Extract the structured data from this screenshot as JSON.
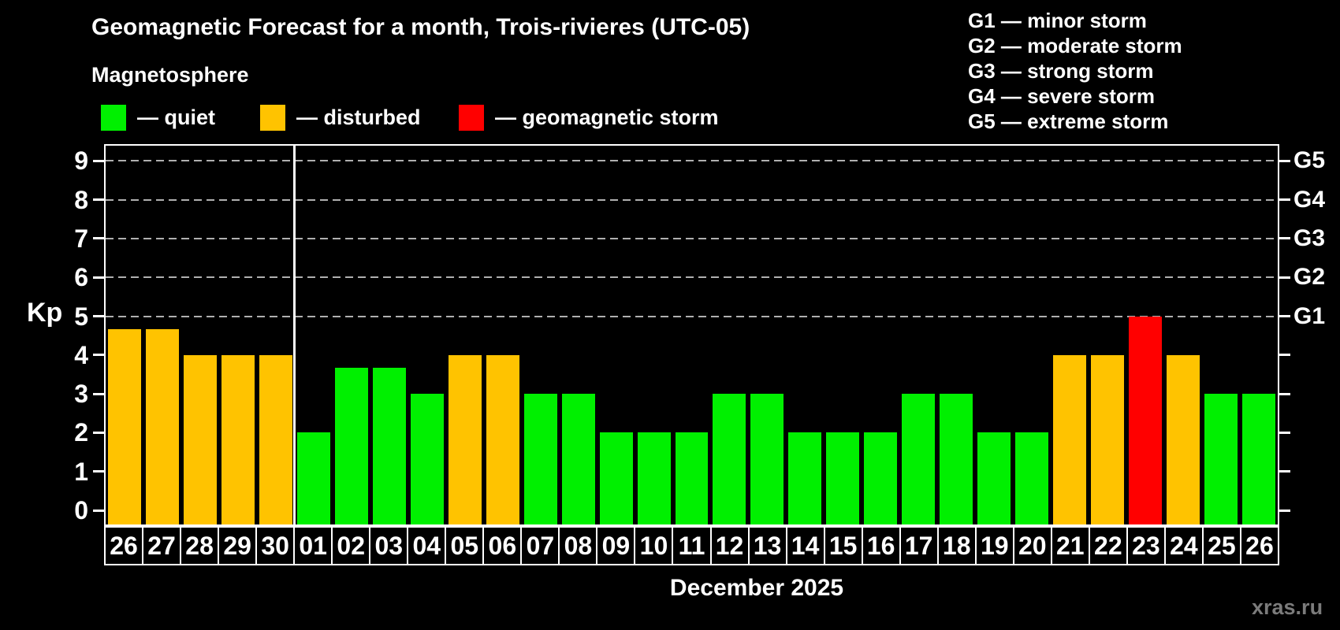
{
  "title": "Geomagnetic Forecast for a month, Trois-rivieres (UTC-05)",
  "subtitle": "Magnetosphere",
  "legend": {
    "items": [
      {
        "key": "quiet",
        "label": "— quiet",
        "color": "#00F000"
      },
      {
        "key": "disturbed",
        "label": "— disturbed",
        "color": "#FFC300"
      },
      {
        "key": "storm",
        "label": "— geomagnetic storm",
        "color": "#FF0000"
      }
    ]
  },
  "g_legend": {
    "lines": [
      "G1 — minor storm",
      "G2 — moderate storm",
      "G3 — strong storm",
      "G4 — severe storm",
      "G5 — extreme storm"
    ]
  },
  "axes": {
    "y_label": "Kp",
    "y_ticks": [
      "0",
      "1",
      "2",
      "3",
      "4",
      "5",
      "6",
      "7",
      "8",
      "9"
    ],
    "right_labels": [
      {
        "label": "G1",
        "kp": 5
      },
      {
        "label": "G2",
        "kp": 6
      },
      {
        "label": "G3",
        "kp": 7
      },
      {
        "label": "G4",
        "kp": 8
      },
      {
        "label": "G5",
        "kp": 9
      }
    ]
  },
  "footer": {
    "month_label": "December 2025",
    "watermark": "xras.ru"
  },
  "chart_data": {
    "type": "bar",
    "title": "Geomagnetic Forecast for a month, Trois-rivieres (UTC-05)",
    "subtitle": "Magnetosphere",
    "xlabel": "December 2025",
    "ylabel": "Kp",
    "ylim": [
      0,
      9
    ],
    "grid": "dashed horizontal lines at Kp 5-9 (G1-G5)",
    "grid_levels_kp": [
      5,
      6,
      7,
      8,
      9
    ],
    "gridline_color": "#B0B0B0",
    "month_separator_before": "01",
    "categories": [
      "26",
      "27",
      "28",
      "29",
      "30",
      "01",
      "02",
      "03",
      "04",
      "05",
      "06",
      "07",
      "08",
      "09",
      "10",
      "11",
      "12",
      "13",
      "14",
      "15",
      "16",
      "17",
      "18",
      "19",
      "20",
      "21",
      "22",
      "23",
      "24",
      "25",
      "26"
    ],
    "values": [
      4.67,
      4.67,
      4,
      4,
      4,
      2,
      3.67,
      3.67,
      3,
      4,
      4,
      3,
      3,
      2,
      2,
      2,
      3,
      3,
      2,
      2,
      2,
      3,
      3,
      2,
      2,
      4,
      4,
      5,
      4,
      3,
      3
    ],
    "statuses": [
      "disturbed",
      "disturbed",
      "disturbed",
      "disturbed",
      "disturbed",
      "quiet",
      "quiet",
      "quiet",
      "quiet",
      "disturbed",
      "disturbed",
      "quiet",
      "quiet",
      "quiet",
      "quiet",
      "quiet",
      "quiet",
      "quiet",
      "quiet",
      "quiet",
      "quiet",
      "quiet",
      "quiet",
      "quiet",
      "quiet",
      "disturbed",
      "disturbed",
      "storm",
      "disturbed",
      "quiet",
      "quiet"
    ],
    "colors": {
      "quiet": "#00F000",
      "disturbed": "#FFC300",
      "storm": "#FF0000"
    }
  }
}
